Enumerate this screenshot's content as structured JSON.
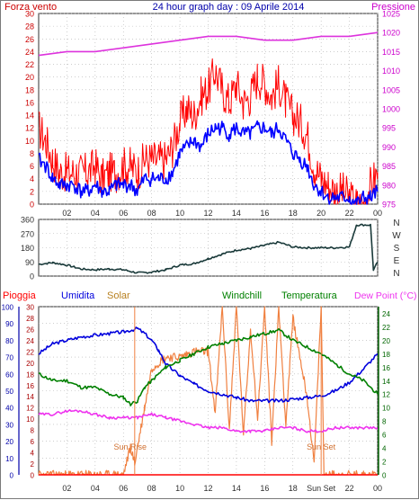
{
  "title": "24 hour graph day : 09 Aprile 2014",
  "colors": {
    "wind": "#ff0000",
    "gust_base": "#0000ff",
    "pressure": "#dd33dd",
    "direction": "#1a3a3a",
    "humidity": "#0000dd",
    "solar": "#f08040",
    "temperature": "#008000",
    "dewpoint": "#ee33ee",
    "rain": "#ff0000",
    "axis_left_wind": "#cc0000",
    "axis_right_pressure": "#cc00cc",
    "sun_label": "#d07030",
    "grid": "#b0b0b0"
  },
  "chart_data": [
    {
      "type": "line",
      "name": "wind-pressure",
      "left_label": "Forza vento",
      "right_label": "Pressione",
      "x_ticks": [
        "02",
        "04",
        "06",
        "08",
        "10",
        "12",
        "14",
        "16",
        "18",
        "20",
        "22",
        "00"
      ],
      "y_left_ticks": [
        0,
        2,
        4,
        6,
        8,
        10,
        12,
        14,
        16,
        18,
        20,
        22,
        24,
        26,
        28,
        30
      ],
      "y_right_ticks": [
        975,
        980,
        985,
        990,
        995,
        1000,
        1005,
        1010,
        1015,
        1020,
        1025
      ],
      "ylim_left": [
        0,
        30
      ],
      "ylim_right": [
        975,
        1025
      ],
      "xlim": [
        0,
        24
      ],
      "series": [
        {
          "key": "wind_gust",
          "x": [
            0,
            0.5,
            1,
            1.5,
            2,
            2.5,
            3,
            3.5,
            4,
            4.5,
            5,
            5.5,
            6,
            6.5,
            7,
            7.5,
            8,
            8.5,
            9,
            9.5,
            10,
            10.5,
            11,
            11.5,
            12,
            12.5,
            13,
            13.5,
            14,
            14.5,
            15,
            15.5,
            16,
            16.5,
            17,
            17.5,
            18,
            18.5,
            19,
            19.5,
            20,
            20.5,
            21,
            21.5,
            22,
            22.5,
            23,
            23.5,
            24
          ],
          "values": [
            12,
            10,
            7,
            5,
            5,
            5,
            5,
            5,
            6,
            4,
            5,
            5,
            6,
            6,
            5,
            7,
            7,
            7,
            7,
            9,
            13,
            15,
            14,
            17,
            18,
            21,
            18,
            16,
            19,
            16,
            17,
            20,
            19,
            17,
            19,
            16,
            14,
            13,
            11,
            6,
            4,
            3,
            2,
            2,
            1,
            0,
            0,
            3,
            5
          ]
        },
        {
          "key": "wind_avg",
          "x": [
            0,
            0.5,
            1,
            1.5,
            2,
            2.5,
            3,
            3.5,
            4,
            4.5,
            5,
            5.5,
            6,
            6.5,
            7,
            7.5,
            8,
            8.5,
            9,
            9.5,
            10,
            10.5,
            11,
            11.5,
            12,
            12.5,
            13,
            13.5,
            14,
            14.5,
            15,
            15.5,
            16,
            16.5,
            17,
            17.5,
            18,
            18.5,
            19,
            19.5,
            20,
            20.5,
            21,
            21.5,
            22,
            22.5,
            23,
            23.5,
            24
          ],
          "values": [
            7,
            6,
            4,
            3,
            3,
            3,
            2,
            2,
            3,
            2,
            2,
            3,
            3,
            3,
            2,
            4,
            4,
            4,
            4,
            5,
            8,
            9,
            10,
            9,
            11,
            12,
            12,
            11,
            12,
            11,
            11,
            12,
            12,
            11,
            12,
            10,
            8,
            7,
            6,
            3,
            2,
            1,
            1,
            1,
            1,
            0,
            1,
            1,
            2
          ]
        },
        {
          "key": "pressure",
          "x": [
            0,
            2,
            4,
            6,
            8,
            10,
            12,
            14,
            16,
            18,
            20,
            22,
            24
          ],
          "values": [
            1014,
            1015,
            1015,
            1016,
            1017,
            1018,
            1019,
            1019,
            1018,
            1018,
            1019,
            1019,
            1020
          ]
        }
      ]
    },
    {
      "type": "line",
      "name": "wind-direction",
      "y_ticks": [
        0,
        90,
        180,
        270,
        360
      ],
      "compass": [
        "N",
        "W",
        "S",
        "E",
        "N"
      ],
      "ylim": [
        0,
        360
      ],
      "xlim": [
        0,
        24
      ],
      "series": [
        {
          "key": "direction",
          "x": [
            0,
            1,
            2,
            3,
            4,
            5,
            6,
            7,
            8,
            9,
            10,
            11,
            12,
            13,
            14,
            15,
            16,
            17,
            18,
            19,
            20,
            21,
            22,
            22.5,
            23,
            23.5,
            23.7,
            24
          ],
          "values": [
            75,
            85,
            70,
            45,
            40,
            45,
            40,
            20,
            25,
            40,
            70,
            80,
            110,
            140,
            165,
            175,
            195,
            215,
            185,
            180,
            180,
            180,
            185,
            325,
            325,
            325,
            40,
            90
          ]
        }
      ]
    },
    {
      "type": "line",
      "name": "weather",
      "labels": [
        "Pioggia",
        "Umidita",
        "Solar",
        "Windchill",
        "Temperatura",
        "Dew Point (°C)"
      ],
      "x_ticks": [
        "02",
        "04",
        "06",
        "08",
        "10",
        "12",
        "14",
        "16",
        "18",
        "Sun Set",
        "22",
        "00"
      ],
      "y_left_ticks": [
        0,
        10,
        20,
        30,
        40,
        50,
        60,
        70,
        80,
        90,
        100
      ],
      "y_mid_ticks": [
        0,
        2,
        4,
        6,
        8,
        10,
        12,
        14,
        16,
        18,
        20,
        22,
        24,
        26,
        28,
        30
      ],
      "y_right_ticks": [
        0,
        2,
        4,
        6,
        8,
        10,
        12,
        14,
        16,
        18,
        20,
        22,
        24
      ],
      "ylim_left": [
        0,
        100
      ],
      "ylim_mid": [
        0,
        30
      ],
      "ylim_right": [
        0,
        25
      ],
      "xlim": [
        0,
        24
      ],
      "annotations": [
        {
          "text": "Sun Rise",
          "x": 6.8
        },
        {
          "text": "Sun Set",
          "x": 20
        }
      ],
      "series": [
        {
          "key": "humidity",
          "x": [
            0,
            1,
            2,
            3,
            4,
            5,
            6,
            7,
            7.5,
            8,
            8.5,
            9,
            10,
            11,
            12,
            13,
            14,
            15,
            16,
            17,
            18,
            19,
            20,
            21,
            22,
            23,
            24
          ],
          "values": [
            72,
            78,
            80,
            82,
            83,
            84,
            85,
            87,
            84,
            80,
            74,
            66,
            59,
            54,
            50,
            48,
            46,
            44,
            44,
            44,
            45,
            46,
            47,
            50,
            55,
            63,
            72
          ]
        },
        {
          "key": "temperature",
          "x": [
            0,
            1,
            2,
            3,
            4,
            5,
            6,
            6.5,
            7,
            7.5,
            8,
            8.5,
            9,
            10,
            11,
            12,
            13,
            14,
            15,
            16,
            17,
            18,
            19,
            20,
            21,
            22,
            23,
            24
          ],
          "values": [
            15,
            14,
            14,
            13,
            13,
            12,
            11.5,
            10.5,
            11,
            13,
            14,
            15,
            16,
            17,
            18,
            19,
            19.5,
            20,
            20.5,
            21,
            21.5,
            20,
            19,
            18,
            16.5,
            15,
            14,
            12
          ]
        },
        {
          "key": "dewpoint",
          "x": [
            0,
            1,
            2,
            3,
            4,
            5,
            6,
            7,
            8,
            9,
            10,
            11,
            12,
            13,
            14,
            15,
            16,
            17,
            18,
            19,
            20,
            21,
            22,
            23,
            24
          ],
          "values": [
            9,
            9,
            9.5,
            9.5,
            9,
            8.5,
            8.5,
            8.5,
            9,
            8.5,
            8,
            7.5,
            7,
            7,
            6.5,
            6.5,
            6.5,
            7,
            7,
            6.5,
            6.5,
            7,
            7,
            7,
            7
          ]
        },
        {
          "key": "solar",
          "x": [
            0,
            6,
            6.5,
            6.8,
            7,
            7.5,
            8,
            9,
            10,
            11,
            12,
            12.5,
            13,
            13.5,
            14,
            14.5,
            15,
            15.5,
            16,
            16.5,
            17,
            17.5,
            18,
            19,
            19.5,
            20,
            20.2,
            21,
            24
          ],
          "values": [
            0,
            0,
            5,
            2,
            5,
            12,
            19,
            21,
            21,
            22,
            22,
            11,
            30,
            8,
            30,
            7,
            26,
            10,
            30,
            6,
            30,
            9,
            28,
            14,
            2,
            30,
            0,
            0,
            0
          ]
        },
        {
          "key": "rain",
          "x": [
            0,
            24
          ],
          "values": [
            0,
            0
          ]
        }
      ]
    }
  ]
}
